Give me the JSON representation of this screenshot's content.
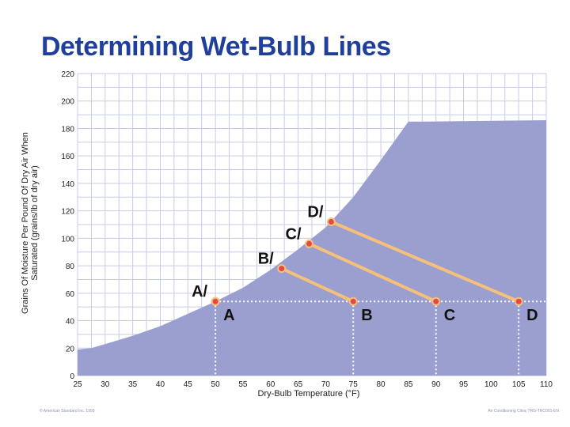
{
  "slide": {
    "title": "Determining Wet-Bulb Lines",
    "footer_left": "© American Standard Inc. 1999",
    "footer_right": "Air Conditioning Clinic TRG-TRC001-EN"
  },
  "chart_data": {
    "type": "area",
    "title": "Determining Wet-Bulb Lines",
    "xlabel": "Dry-Bulb Temperature (°F)",
    "ylabel": "Grains Of Moisture Per Pound Of Dry Air When Saturated (grains/lb of dry air)",
    "xlim": [
      25,
      110
    ],
    "ylim": [
      0,
      220
    ],
    "xticks": [
      25,
      30,
      35,
      40,
      45,
      50,
      55,
      60,
      65,
      70,
      75,
      80,
      85,
      90,
      95,
      100,
      105,
      110
    ],
    "yticks": [
      0,
      20,
      40,
      60,
      80,
      100,
      120,
      140,
      160,
      180,
      200,
      220
    ],
    "grid": true,
    "colors": {
      "saturation_area": "#9b9fd0",
      "wet_bulb_line": "#f5c07a",
      "point_fill": "#e24a4a",
      "grid": "#c8cbe8"
    },
    "saturation_curve": {
      "x": [
        25,
        27.5,
        30,
        35,
        40,
        45,
        50,
        55,
        60,
        65,
        70,
        75,
        80,
        85,
        88,
        110
      ],
      "y": [
        19,
        20,
        23,
        29,
        36,
        45,
        54,
        64,
        77,
        92,
        108,
        130,
        157,
        185,
        185,
        186
      ]
    },
    "reference_points": [
      {
        "label": "A",
        "x": 50,
        "y": 54
      },
      {
        "label": "B",
        "x": 75,
        "y": 54
      },
      {
        "label": "C",
        "x": 90,
        "y": 54
      },
      {
        "label": "D",
        "x": 105,
        "y": 54
      }
    ],
    "saturation_points": [
      {
        "label": "A/",
        "x": 50,
        "y": 54
      },
      {
        "label": "B/",
        "x": 62,
        "y": 78
      },
      {
        "label": "C/",
        "x": 67,
        "y": 96
      },
      {
        "label": "D/",
        "x": 71,
        "y": 112
      }
    ],
    "wet_bulb_lines": [
      {
        "from": "B/",
        "to": "B"
      },
      {
        "from": "C/",
        "to": "C"
      },
      {
        "from": "D/",
        "to": "D"
      }
    ]
  }
}
